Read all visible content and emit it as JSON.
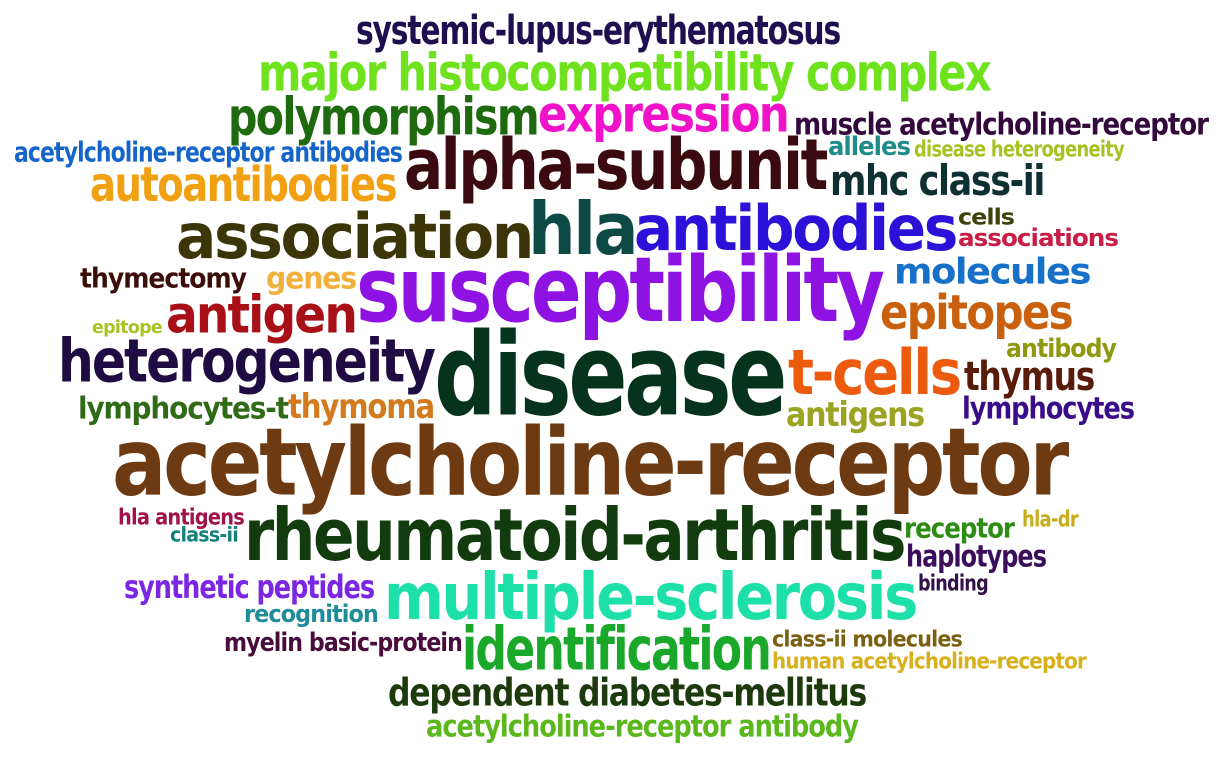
{
  "words": [
    {
      "text": "systemic-lupus-erythematosus",
      "color": "#1f0f50"
    },
    {
      "text": "major histocompatibility complex",
      "color": "#6ee21c"
    },
    {
      "text": "polymorphism",
      "color": "#1d6b0e"
    },
    {
      "text": "expression",
      "color": "#f012c8"
    },
    {
      "text": "muscle acetylcholine-receptor",
      "color": "#33093d"
    },
    {
      "text": "acetylcholine-receptor antibodies",
      "color": "#1565c8"
    },
    {
      "text": "alpha-subunit",
      "color": "#3a0a10"
    },
    {
      "text": "alleles",
      "color": "#1f8c8a"
    },
    {
      "text": "disease heterogeneity",
      "color": "#a8c224"
    },
    {
      "text": "autoantibodies",
      "color": "#f0a010"
    },
    {
      "text": "mhc class-ii",
      "color": "#0e3033"
    },
    {
      "text": "association",
      "color": "#3c3508"
    },
    {
      "text": "hla",
      "color": "#0d4a46"
    },
    {
      "text": "antibodies",
      "color": "#2c12d8"
    },
    {
      "text": "cells",
      "color": "#3e420c"
    },
    {
      "text": "associations",
      "color": "#c81e46"
    },
    {
      "text": "thymectomy",
      "color": "#3b0e0a"
    },
    {
      "text": "genes",
      "color": "#f2b03a"
    },
    {
      "text": "susceptibility",
      "color": "#8e12e2"
    },
    {
      "text": "molecules",
      "color": "#1670c8"
    },
    {
      "text": "antigen",
      "color": "#a80f16"
    },
    {
      "text": "epitope",
      "color": "#a8c224"
    },
    {
      "text": "epitopes",
      "color": "#c8600e"
    },
    {
      "text": "heterogeneity",
      "color": "#1f0c42"
    },
    {
      "text": "disease",
      "color": "#06331e"
    },
    {
      "text": "t-cells",
      "color": "#ec5a0e"
    },
    {
      "text": "antibody",
      "color": "#8e9a0e"
    },
    {
      "text": "thymus",
      "color": "#5a1c0a"
    },
    {
      "text": "lymphocytes-t",
      "color": "#2f6b16"
    },
    {
      "text": "thymoma",
      "color": "#d27a1c"
    },
    {
      "text": "antigens",
      "color": "#9aa420"
    },
    {
      "text": "lymphocytes",
      "color": "#3a0c8a"
    },
    {
      "text": "acetylcholine-receptor",
      "color": "#6e3a12"
    },
    {
      "text": "hla antigens",
      "color": "#a0124a"
    },
    {
      "text": "class-ii",
      "color": "#13807e"
    },
    {
      "text": "rheumatoid-arthritis",
      "color": "#123c0e"
    },
    {
      "text": "receptor",
      "color": "#2c8c14"
    },
    {
      "text": "hla-dr",
      "color": "#c8ae1c"
    },
    {
      "text": "haplotypes",
      "color": "#3a0e5a"
    },
    {
      "text": "synthetic peptides",
      "color": "#7a26e2"
    },
    {
      "text": "multiple-sclerosis",
      "color": "#1ce0a8"
    },
    {
      "text": "binding",
      "color": "#33104a"
    },
    {
      "text": "recognition",
      "color": "#1f8c9a"
    },
    {
      "text": "myelin basic-protein",
      "color": "#4a0c3a"
    },
    {
      "text": "identification",
      "color": "#1aa82a"
    },
    {
      "text": "class-ii molecules",
      "color": "#7a6010"
    },
    {
      "text": "human acetylcholine-receptor",
      "color": "#d8b01a"
    },
    {
      "text": "dependent diabetes-mellitus",
      "color": "#1c3a0c"
    },
    {
      "text": "acetylcholine-receptor antibody",
      "color": "#5ab81c"
    }
  ]
}
